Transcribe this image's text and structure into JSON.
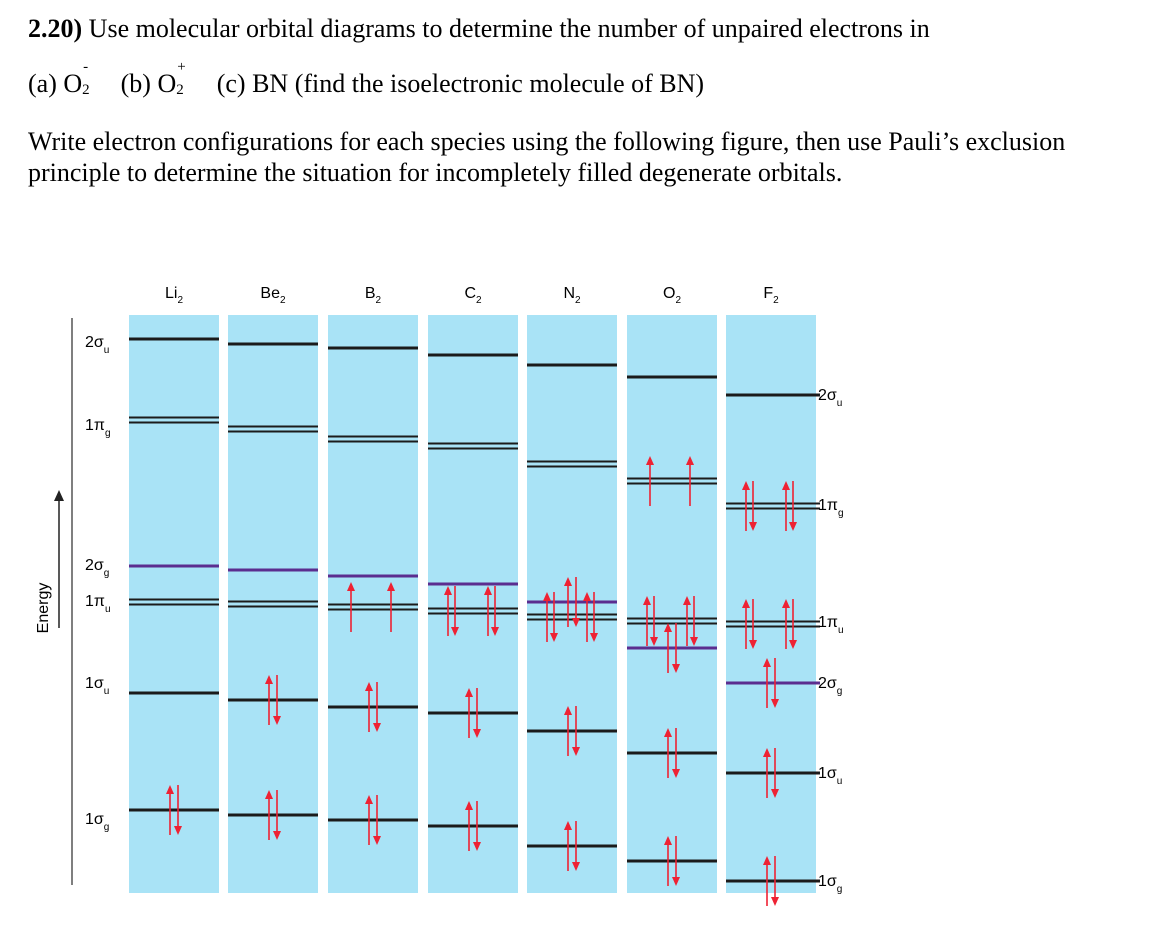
{
  "question": {
    "number": "2.20)",
    "text": "Use molecular orbital diagrams to determine the number of unpaired electrons in",
    "parts": [
      {
        "label": "(a) O",
        "sub": "2",
        "sup": "-"
      },
      {
        "label": "(b) O",
        "sub": "2",
        "sup": "+"
      },
      {
        "label": "(c) BN (find the isoelectronic molecule of BN)",
        "sub": "",
        "sup": ""
      }
    ],
    "instructions": "Write electron configurations for each species using the following figure, then use Pauli’s exclusion principle to determine the situation for incompletely filled degenerate orbitals."
  },
  "diagram": {
    "axis_label": "Energy",
    "colors": {
      "column_bg": "#a9e3f6",
      "level": "#1b1b1b",
      "level_2sg": "#5b2d8f",
      "arrow": "#ee2233"
    },
    "left_labels": [
      {
        "main": "2σ",
        "sub": "u"
      },
      {
        "main": "1π",
        "sub": "g"
      },
      {
        "main": "2σ",
        "sub": "g"
      },
      {
        "main": "1π",
        "sub": "u"
      },
      {
        "main": "1σ",
        "sub": "u"
      },
      {
        "main": "1σ",
        "sub": "g"
      }
    ],
    "right_labels": [
      {
        "main": "2σ",
        "sub": "u"
      },
      {
        "main": "1π",
        "sub": "g"
      },
      {
        "main": "1π",
        "sub": "u"
      },
      {
        "main": "2σ",
        "sub": "g"
      },
      {
        "main": "1σ",
        "sub": "u"
      },
      {
        "main": "1σ",
        "sub": "g"
      }
    ],
    "molecules": [
      {
        "name": "Li",
        "sub": "2",
        "occupancy": {
          "1sg": 2,
          "1su": 0,
          "1pu": 0,
          "2sg": 0,
          "1pg": 0,
          "2su": 0
        }
      },
      {
        "name": "Be",
        "sub": "2",
        "occupancy": {
          "1sg": 2,
          "1su": 2,
          "1pu": 0,
          "2sg": 0,
          "1pg": 0,
          "2su": 0
        }
      },
      {
        "name": "B",
        "sub": "2",
        "occupancy": {
          "1sg": 2,
          "1su": 2,
          "1pu": 2,
          "2sg": 0,
          "1pg": 0,
          "2su": 0
        }
      },
      {
        "name": "C",
        "sub": "2",
        "occupancy": {
          "1sg": 2,
          "1su": 2,
          "1pu": 4,
          "2sg": 0,
          "1pg": 0,
          "2su": 0
        }
      },
      {
        "name": "N",
        "sub": "2",
        "occupancy": {
          "1sg": 2,
          "1su": 2,
          "1pu": 4,
          "2sg": 2,
          "1pg": 0,
          "2su": 0
        }
      },
      {
        "name": "O",
        "sub": "2",
        "occupancy": {
          "1sg": 2,
          "1su": 2,
          "2sg": 2,
          "1pu": 4,
          "1pg": 2,
          "2su": 0
        }
      },
      {
        "name": "F",
        "sub": "2",
        "occupancy": {
          "1sg": 2,
          "1su": 2,
          "2sg": 2,
          "1pu": 4,
          "1pg": 4,
          "2su": 0
        }
      }
    ]
  }
}
